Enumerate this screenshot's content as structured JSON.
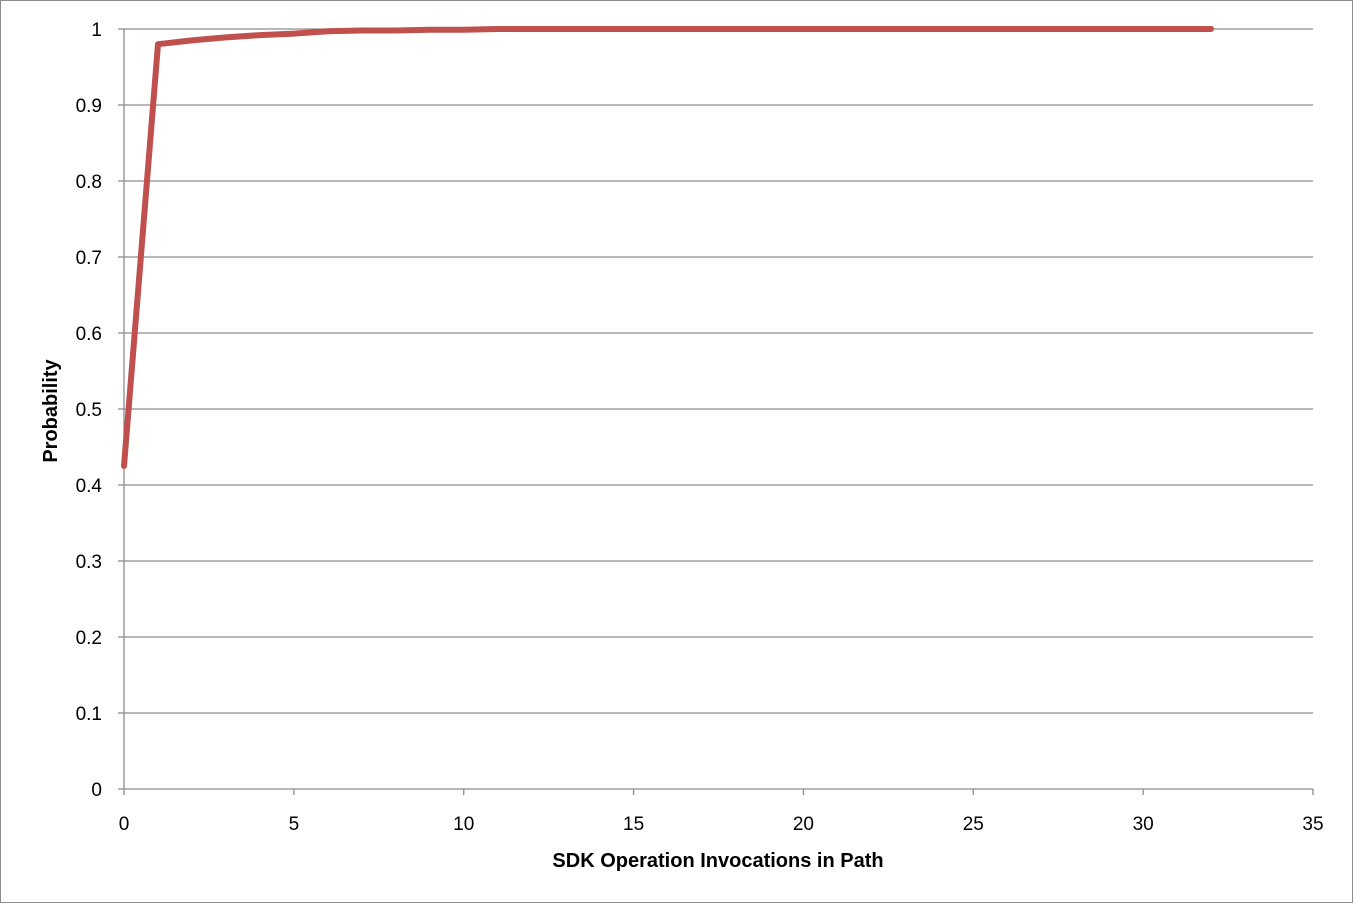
{
  "chart_data": {
    "type": "line",
    "title": "",
    "xlabel": "SDK Operation Invocations in Path",
    "ylabel": "Probability",
    "xlim": [
      0,
      35
    ],
    "ylim": [
      0,
      1
    ],
    "x_ticks": [
      "0",
      "5",
      "10",
      "15",
      "20",
      "25",
      "30",
      "35"
    ],
    "y_ticks": [
      "0",
      "0.1",
      "0.2",
      "0.3",
      "0.4",
      "0.5",
      "0.6",
      "0.7",
      "0.8",
      "0.9",
      "1"
    ],
    "grid": true,
    "legend": "none",
    "series": [
      {
        "color": "#c0504d",
        "x": [
          0,
          1,
          2,
          3,
          4,
          5,
          6,
          7,
          8,
          9,
          10,
          11,
          12,
          15,
          20,
          25,
          30,
          32
        ],
        "y": [
          0.425,
          0.98,
          0.985,
          0.989,
          0.992,
          0.994,
          0.997,
          0.998,
          0.998,
          0.999,
          0.999,
          1.0,
          1.0,
          1.0,
          1.0,
          1.0,
          1.0,
          1.0
        ]
      }
    ]
  }
}
